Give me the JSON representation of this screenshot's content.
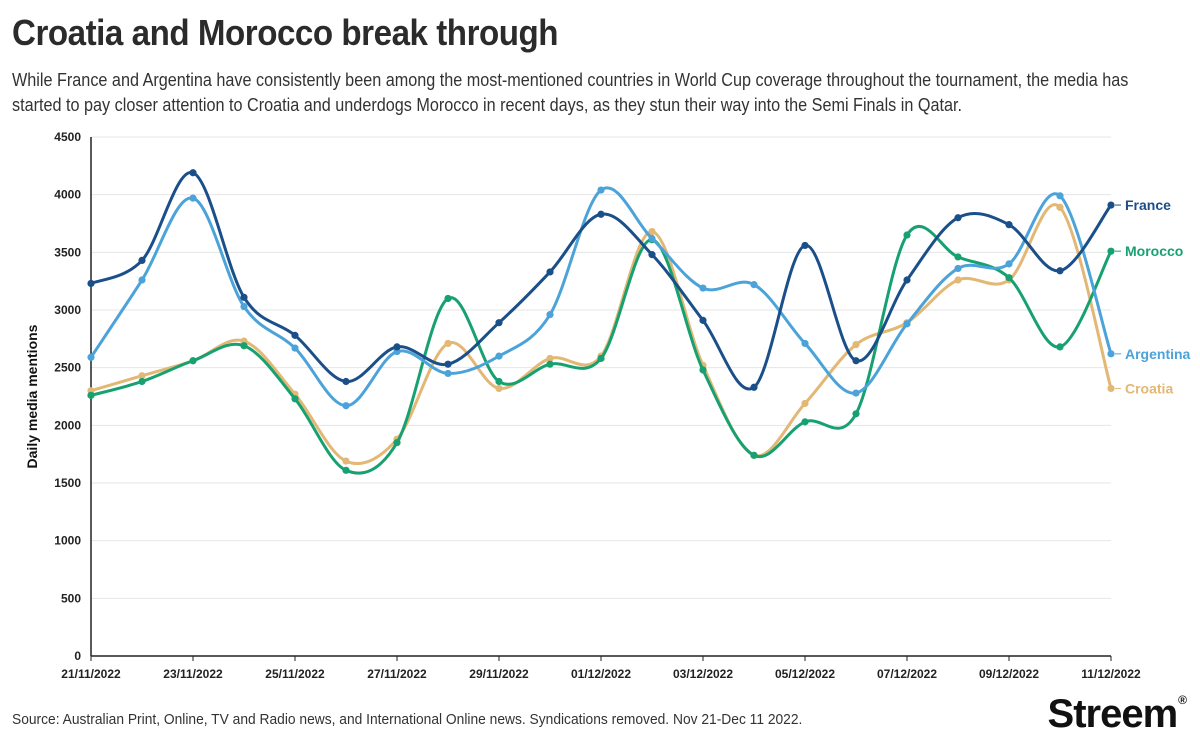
{
  "header": {
    "title": "Croatia and Morocco break through",
    "subtitle": "While France and Argentina have consistently been among the most-mentioned countries in World Cup coverage throughout the tournament, the media has started to pay closer attention to Croatia and underdogs Morocco in recent days, as they stun their way into the Semi Finals in Qatar."
  },
  "footer": {
    "source": "Source: Australian Print, Online, TV and Radio news, and International Online news. Syndications removed. Nov 21-Dec 11 2022.",
    "brand": "Streem",
    "brand_mark": "®"
  },
  "chart_data": {
    "type": "line",
    "x": [
      "21/11/2022",
      "22/11/2022",
      "23/11/2022",
      "24/11/2022",
      "25/11/2022",
      "26/11/2022",
      "27/11/2022",
      "28/11/2022",
      "29/11/2022",
      "30/11/2022",
      "01/12/2022",
      "02/12/2022",
      "03/12/2022",
      "04/12/2022",
      "05/12/2022",
      "06/12/2022",
      "07/12/2022",
      "08/12/2022",
      "09/12/2022",
      "10/12/2022",
      "11/12/2022"
    ],
    "x_tick_labels": [
      "21/11/2022",
      "23/11/2022",
      "25/11/2022",
      "27/11/2022",
      "29/11/2022",
      "01/12/2022",
      "03/12/2022",
      "05/12/2022",
      "07/12/2022",
      "09/12/2022",
      "11/12/2022"
    ],
    "ylabel": "Daily media mentions",
    "ylim": [
      0,
      4500
    ],
    "yticks": [
      0,
      500,
      1000,
      1500,
      2000,
      2500,
      3000,
      3500,
      4000,
      4500
    ],
    "grid": true,
    "legend": "direct labels at right end of lines",
    "series": [
      {
        "name": "Croatia",
        "color": "#e3b774",
        "values": [
          2300,
          2430,
          2560,
          2730,
          2270,
          1690,
          1880,
          2710,
          2320,
          2580,
          2600,
          3680,
          2520,
          1740,
          2190,
          2700,
          2890,
          3260,
          3260,
          3890,
          2320
        ]
      },
      {
        "name": "Morocco",
        "color": "#17a171",
        "values": [
          2260,
          2380,
          2560,
          2690,
          2230,
          1610,
          1850,
          3100,
          2380,
          2530,
          2580,
          3610,
          2480,
          1740,
          2030,
          2100,
          3650,
          3460,
          3280,
          2680,
          3510
        ]
      },
      {
        "name": "Argentina",
        "color": "#4ba3d9",
        "values": [
          2590,
          3260,
          3970,
          3030,
          2670,
          2170,
          2640,
          2450,
          2600,
          2960,
          4040,
          3620,
          3190,
          3220,
          2710,
          2280,
          2880,
          3360,
          3400,
          3990,
          2620
        ]
      },
      {
        "name": "France",
        "color": "#1b4f89",
        "values": [
          3230,
          3430,
          4190,
          3110,
          2780,
          2380,
          2680,
          2530,
          2890,
          3330,
          3830,
          3480,
          2910,
          2330,
          3560,
          2560,
          3260,
          3800,
          3740,
          3340,
          3910
        ]
      }
    ]
  }
}
